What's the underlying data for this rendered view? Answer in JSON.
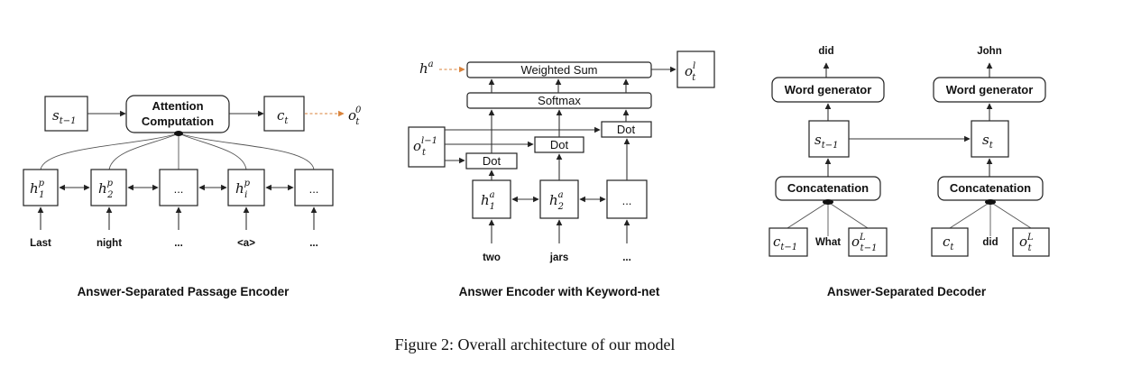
{
  "panels": {
    "left": {
      "caption": "Answer-Separated Passage Encoder",
      "state_sym": "s",
      "state_sub": "t−1",
      "attention_line1": "Attention",
      "attention_line2": "Computation",
      "context_sym": "c",
      "context_sub": "t",
      "output_sym": "o",
      "output_sup": "0",
      "output_sub": "t",
      "h_sym": "h",
      "h_sup": "p",
      "h1_sub": "1",
      "h2_sub": "2",
      "hi_sub": "i",
      "ellipsis": "...",
      "tokens": [
        "Last",
        "night",
        "...",
        "<a>",
        "..."
      ]
    },
    "middle": {
      "caption": "Answer Encoder with Keyword-net",
      "ha_sym": "h",
      "ha_sup": "a",
      "weighted_sum": "Weighted Sum",
      "softmax": "Softmax",
      "dot": "Dot",
      "out_sym": "o",
      "out_sup": "l",
      "out_sub": "t",
      "prev_sym": "o",
      "prev_sup": "l−1",
      "prev_sub": "t",
      "h_sym": "h",
      "h_sup": "a",
      "h1_sub": "1",
      "h2_sub": "2",
      "ellipsis": "...",
      "tokens": [
        "two",
        "jars",
        "..."
      ]
    },
    "right": {
      "caption": "Answer-Separated Decoder",
      "out_word_1": "did",
      "out_word_2": "John",
      "word_generator": "Word generator",
      "concatenation": "Concatenation",
      "s_sym": "s",
      "s1_sub": "t−1",
      "s2_sub": "t",
      "c_sym": "c",
      "c1_sub": "t−1",
      "c2_sub": "t",
      "o_sym": "o",
      "o_sup": "L",
      "o1_sub": "t−1",
      "o2_sub": "t",
      "in_word_1": "What",
      "in_word_2": "did"
    }
  },
  "figure_caption": "Figure 2: Overall architecture of our model",
  "colors": {
    "accent_arrow": "#d9823a",
    "line": "#333333"
  }
}
